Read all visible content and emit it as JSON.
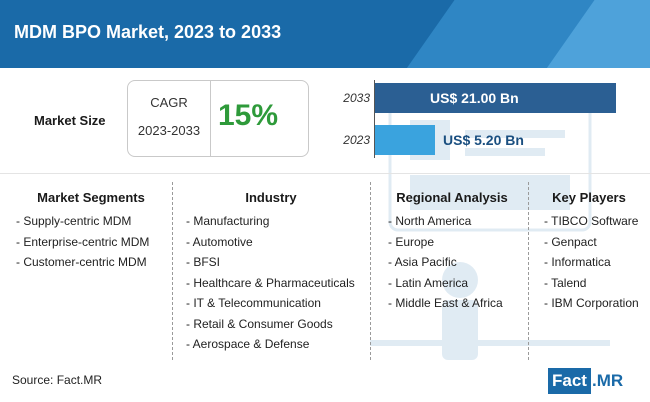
{
  "title": "MDM BPO Market, 2023 to 2033",
  "market_size_label": "Market Size",
  "cagr": {
    "label": "CAGR",
    "period": "2023-2033",
    "value": "15%"
  },
  "chart_data": {
    "type": "bar",
    "orientation": "horizontal",
    "categories": [
      "2033",
      "2023"
    ],
    "values": [
      21.0,
      5.2
    ],
    "value_labels": [
      "US$ 21.00 Bn",
      "US$ 5.20 Bn"
    ],
    "colors": [
      "#2b5f93",
      "#3aa3de"
    ],
    "title": "",
    "xlabel": "",
    "ylabel": "",
    "xlim": [
      0,
      21.0
    ],
    "grid": false
  },
  "segments": [
    {
      "heading": "Market Segments",
      "items": [
        "- Supply-centric MDM",
        "- Enterprise-centric MDM",
        "- Customer-centric MDM"
      ]
    },
    {
      "heading": "Industry",
      "items": [
        "- Manufacturing",
        "- Automotive",
        "- BFSI",
        "- Healthcare & Pharmaceuticals",
        "- IT & Telecommunication",
        "- Retail & Consumer Goods",
        "- Aerospace & Defense"
      ]
    },
    {
      "heading": "Regional Analysis",
      "items": [
        "- North America",
        "- Europe",
        "- Asia Pacific",
        "- Latin America",
        "- Middle East & Africa"
      ]
    },
    {
      "heading": "Key Players",
      "items": [
        "- TIBCO Software",
        "- Genpact",
        "- Informatica",
        "- Talend",
        "- IBM Corporation"
      ]
    }
  ],
  "source": "Source: Fact.MR",
  "logo": {
    "part1": "Fact",
    "dot": ".",
    "part2": "MR"
  },
  "colors": {
    "header": "#1a6aa8",
    "cagr": "#2e9a3a",
    "bar_2033": "#2b5f93",
    "bar_2023": "#3aa3de",
    "label_2023": "#1a4f80"
  }
}
